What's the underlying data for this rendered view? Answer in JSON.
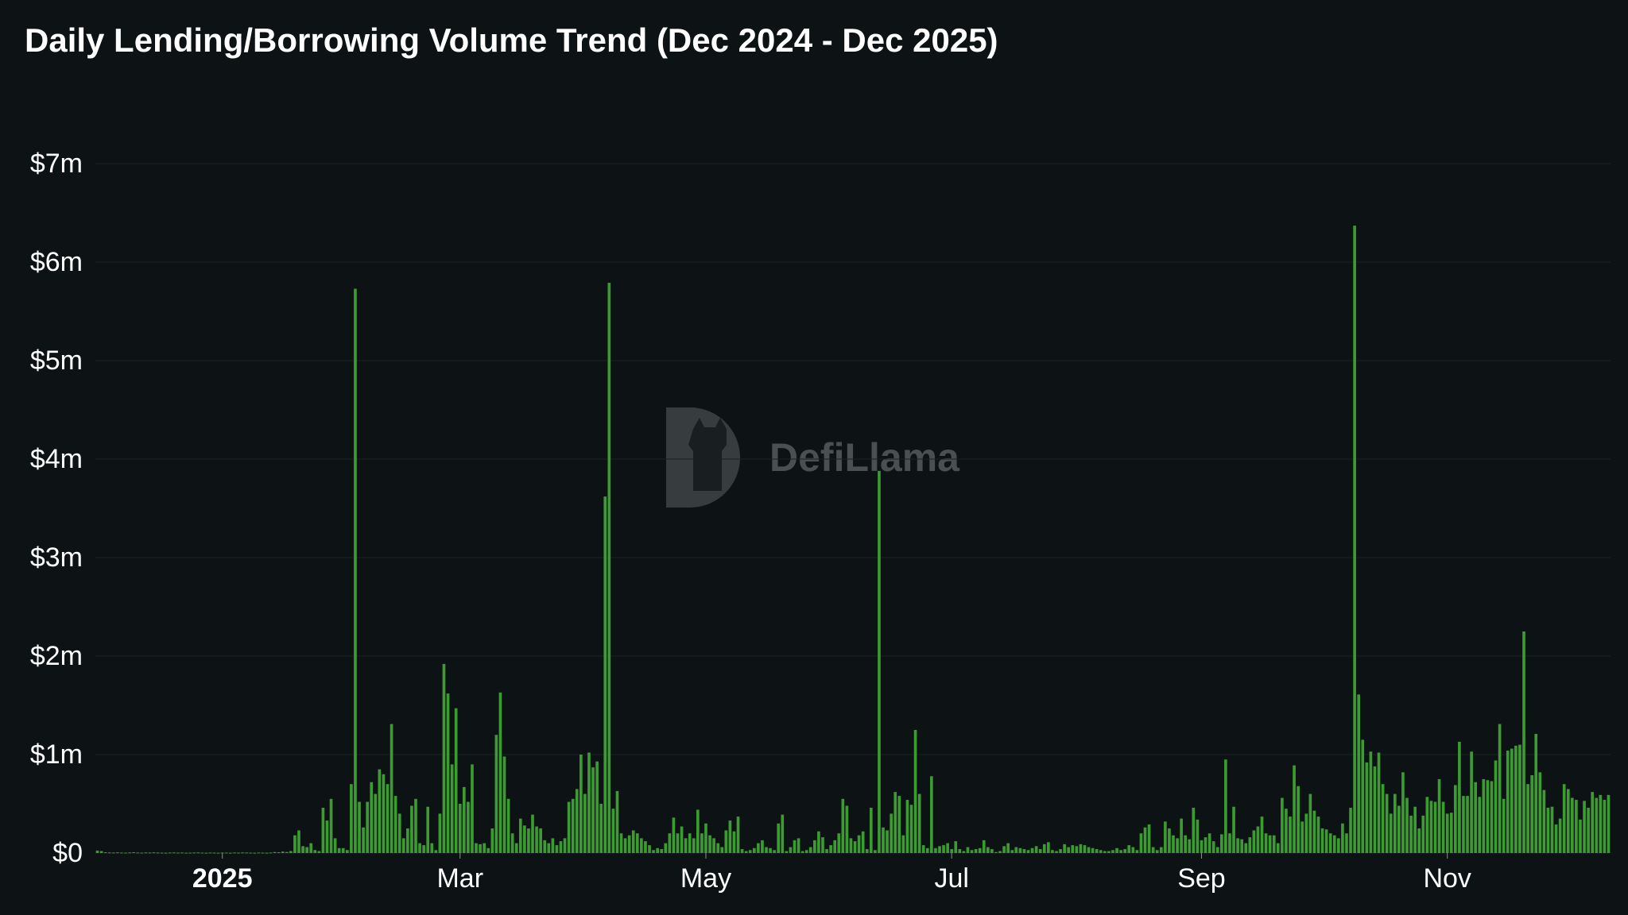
{
  "chart_data": {
    "type": "bar",
    "title": "Daily Lending/Borrowing Volume Trend (Dec 2024 - Dec 2025)",
    "watermark": "DefiLlama",
    "color": "#3c9c32",
    "grid": true,
    "ylim": [
      0,
      7500000
    ],
    "yticks": [
      {
        "value": 0,
        "label": "$0"
      },
      {
        "value": 1000000,
        "label": "$1m"
      },
      {
        "value": 2000000,
        "label": "$2m"
      },
      {
        "value": 3000000,
        "label": "$3m"
      },
      {
        "value": 4000000,
        "label": "$4m"
      },
      {
        "value": 5000000,
        "label": "$5m"
      },
      {
        "value": 6000000,
        "label": "$6m"
      },
      {
        "value": 7000000,
        "label": "$7m"
      }
    ],
    "categories": [
      null,
      null,
      null,
      null,
      null,
      null,
      null,
      null,
      null,
      null,
      null,
      null,
      null,
      null,
      null,
      null,
      null,
      null,
      null,
      null,
      null,
      null,
      null,
      null,
      null,
      null,
      null,
      null,
      null,
      null,
      null,
      "2025",
      null,
      null,
      null,
      null,
      null,
      null,
      null,
      null,
      null,
      null,
      null,
      null,
      null,
      null,
      null,
      null,
      null,
      null,
      null,
      null,
      null,
      null,
      null,
      null,
      null,
      null,
      null,
      null,
      null,
      null,
      null,
      null,
      null,
      null,
      null,
      null,
      null,
      null,
      null,
      null,
      null,
      null,
      null,
      null,
      null,
      null,
      null,
      null,
      null,
      null,
      null,
      null,
      null,
      null,
      null,
      null,
      null,
      null,
      "Mar",
      null,
      null,
      null,
      null,
      null,
      null,
      null,
      null,
      null,
      null,
      null,
      null,
      null,
      null,
      null,
      null,
      null,
      null,
      null,
      null,
      null,
      null,
      null,
      null,
      null,
      null,
      null,
      null,
      null,
      null,
      null,
      null,
      null,
      null,
      null,
      null,
      null,
      null,
      null,
      null,
      null,
      null,
      null,
      null,
      null,
      null,
      null,
      null,
      null,
      null,
      null,
      null,
      null,
      null,
      null,
      null,
      null,
      null,
      null,
      null,
      "May",
      null,
      null,
      null,
      null,
      null,
      null,
      null,
      null,
      null,
      null,
      null,
      null,
      null,
      null,
      null,
      null,
      null,
      null,
      null,
      null,
      null,
      null,
      null,
      null,
      null,
      null,
      null,
      null,
      null,
      null,
      null,
      null,
      null,
      null,
      null,
      null,
      null,
      null,
      null,
      null,
      null,
      null,
      null,
      null,
      null,
      null,
      null,
      null,
      null,
      null,
      null,
      null,
      null,
      null,
      null,
      null,
      null,
      null,
      null,
      null,
      "Jul",
      null,
      null,
      null,
      null,
      null,
      null,
      null,
      null,
      null,
      null,
      null,
      null,
      null,
      null,
      null,
      null,
      null,
      null,
      null,
      null,
      null,
      null,
      null,
      null,
      null,
      null,
      null,
      null,
      null,
      null,
      null,
      null,
      null,
      null,
      null,
      null,
      null,
      null,
      null,
      null,
      null,
      null,
      null,
      null,
      null,
      null,
      null,
      null,
      null,
      null,
      null,
      null,
      null,
      null,
      null,
      null,
      null,
      null,
      null,
      null,
      null,
      "Sep",
      null,
      null,
      null,
      null,
      null,
      null,
      null,
      null,
      null,
      null,
      null,
      null,
      null,
      null,
      null,
      null,
      null,
      null,
      null,
      null,
      null,
      null,
      null,
      null,
      null,
      null,
      null,
      null,
      null,
      null,
      null,
      null,
      null,
      null,
      null,
      null,
      null,
      null,
      null,
      null,
      null,
      null,
      null,
      null,
      null,
      null,
      null,
      null,
      null,
      null,
      null,
      null,
      null,
      null,
      null,
      null,
      null,
      null,
      null,
      null,
      "Nov",
      null,
      null,
      null,
      null,
      null,
      null,
      null,
      null,
      null,
      null,
      null,
      null,
      null,
      null,
      null,
      null,
      null,
      null,
      null,
      null,
      null,
      null,
      null,
      null,
      null,
      null,
      null,
      null,
      null,
      null,
      null,
      null,
      null,
      null,
      null,
      null,
      null,
      null,
      null,
      null
    ],
    "values": [
      25000,
      20000,
      8000,
      6000,
      5000,
      7000,
      5000,
      4000,
      6000,
      8000,
      5000,
      4000,
      6000,
      5000,
      7000,
      5000,
      4000,
      3000,
      5000,
      6000,
      4000,
      5000,
      3000,
      4000,
      5000,
      6000,
      4000,
      3000,
      5000,
      4000,
      3000,
      5000,
      4000,
      3000,
      5000,
      4000,
      6000,
      5000,
      4000,
      3000,
      5000,
      4000,
      3000,
      5000,
      10000,
      8000,
      15000,
      10000,
      20000,
      180000,
      230000,
      70000,
      60000,
      100000,
      30000,
      20000,
      460000,
      330000,
      550000,
      150000,
      50000,
      50000,
      30000,
      700000,
      5730000,
      520000,
      260000,
      520000,
      720000,
      600000,
      850000,
      800000,
      700000,
      1310000,
      580000,
      400000,
      150000,
      250000,
      480000,
      550000,
      100000,
      80000,
      470000,
      100000,
      30000,
      400000,
      1920000,
      1620000,
      900000,
      1470000,
      500000,
      670000,
      520000,
      900000,
      100000,
      90000,
      100000,
      50000,
      250000,
      1200000,
      1630000,
      980000,
      550000,
      200000,
      100000,
      350000,
      280000,
      250000,
      390000,
      270000,
      250000,
      130000,
      100000,
      150000,
      80000,
      120000,
      150000,
      520000,
      550000,
      650000,
      1000000,
      600000,
      1020000,
      870000,
      930000,
      500000,
      3620000,
      5790000,
      450000,
      630000,
      200000,
      150000,
      180000,
      230000,
      200000,
      150000,
      120000,
      80000,
      30000,
      50000,
      40000,
      100000,
      200000,
      360000,
      200000,
      270000,
      150000,
      200000,
      150000,
      440000,
      200000,
      300000,
      180000,
      150000,
      100000,
      60000,
      230000,
      330000,
      220000,
      370000,
      40000,
      20000,
      30000,
      50000,
      100000,
      130000,
      60000,
      50000,
      30000,
      300000,
      390000,
      20000,
      60000,
      130000,
      150000,
      20000,
      30000,
      60000,
      130000,
      220000,
      160000,
      40000,
      80000,
      130000,
      200000,
      550000,
      480000,
      150000,
      120000,
      180000,
      220000,
      40000,
      460000,
      30000,
      3880000,
      260000,
      230000,
      400000,
      620000,
      580000,
      180000,
      540000,
      490000,
      1250000,
      600000,
      80000,
      50000,
      780000,
      50000,
      70000,
      80000,
      100000,
      40000,
      120000,
      40000,
      20000,
      60000,
      30000,
      40000,
      50000,
      130000,
      60000,
      40000,
      10000,
      20000,
      70000,
      100000,
      30000,
      60000,
      50000,
      40000,
      30000,
      50000,
      70000,
      40000,
      90000,
      110000,
      30000,
      20000,
      40000,
      90000,
      60000,
      80000,
      70000,
      90000,
      80000,
      60000,
      50000,
      40000,
      30000,
      20000,
      20000,
      30000,
      50000,
      30000,
      40000,
      80000,
      60000,
      30000,
      200000,
      260000,
      290000,
      60000,
      30000,
      60000,
      320000,
      250000,
      180000,
      150000,
      350000,
      180000,
      140000,
      460000,
      340000,
      130000,
      160000,
      200000,
      120000,
      60000,
      190000,
      950000,
      200000,
      470000,
      150000,
      140000,
      100000,
      160000,
      230000,
      270000,
      370000,
      200000,
      180000,
      180000,
      100000,
      560000,
      450000,
      370000,
      890000,
      680000,
      320000,
      400000,
      600000,
      430000,
      370000,
      250000,
      240000,
      200000,
      180000,
      150000,
      300000,
      200000,
      460000,
      6370000,
      1610000,
      1150000,
      920000,
      1030000,
      880000,
      1020000,
      700000,
      600000,
      400000,
      600000,
      480000,
      820000,
      560000,
      380000,
      470000,
      250000,
      380000,
      570000,
      530000,
      520000,
      750000,
      520000,
      400000,
      410000,
      690000,
      1130000,
      580000,
      580000,
      1030000,
      720000,
      570000,
      750000,
      740000,
      730000,
      940000,
      1310000,
      550000,
      1040000,
      1060000,
      1090000,
      1100000,
      2250000,
      700000,
      790000,
      1210000,
      820000,
      640000,
      460000,
      470000,
      290000,
      350000,
      700000,
      650000,
      560000,
      540000,
      340000,
      530000,
      460000,
      620000,
      560000,
      590000,
      540000,
      590000
    ]
  }
}
